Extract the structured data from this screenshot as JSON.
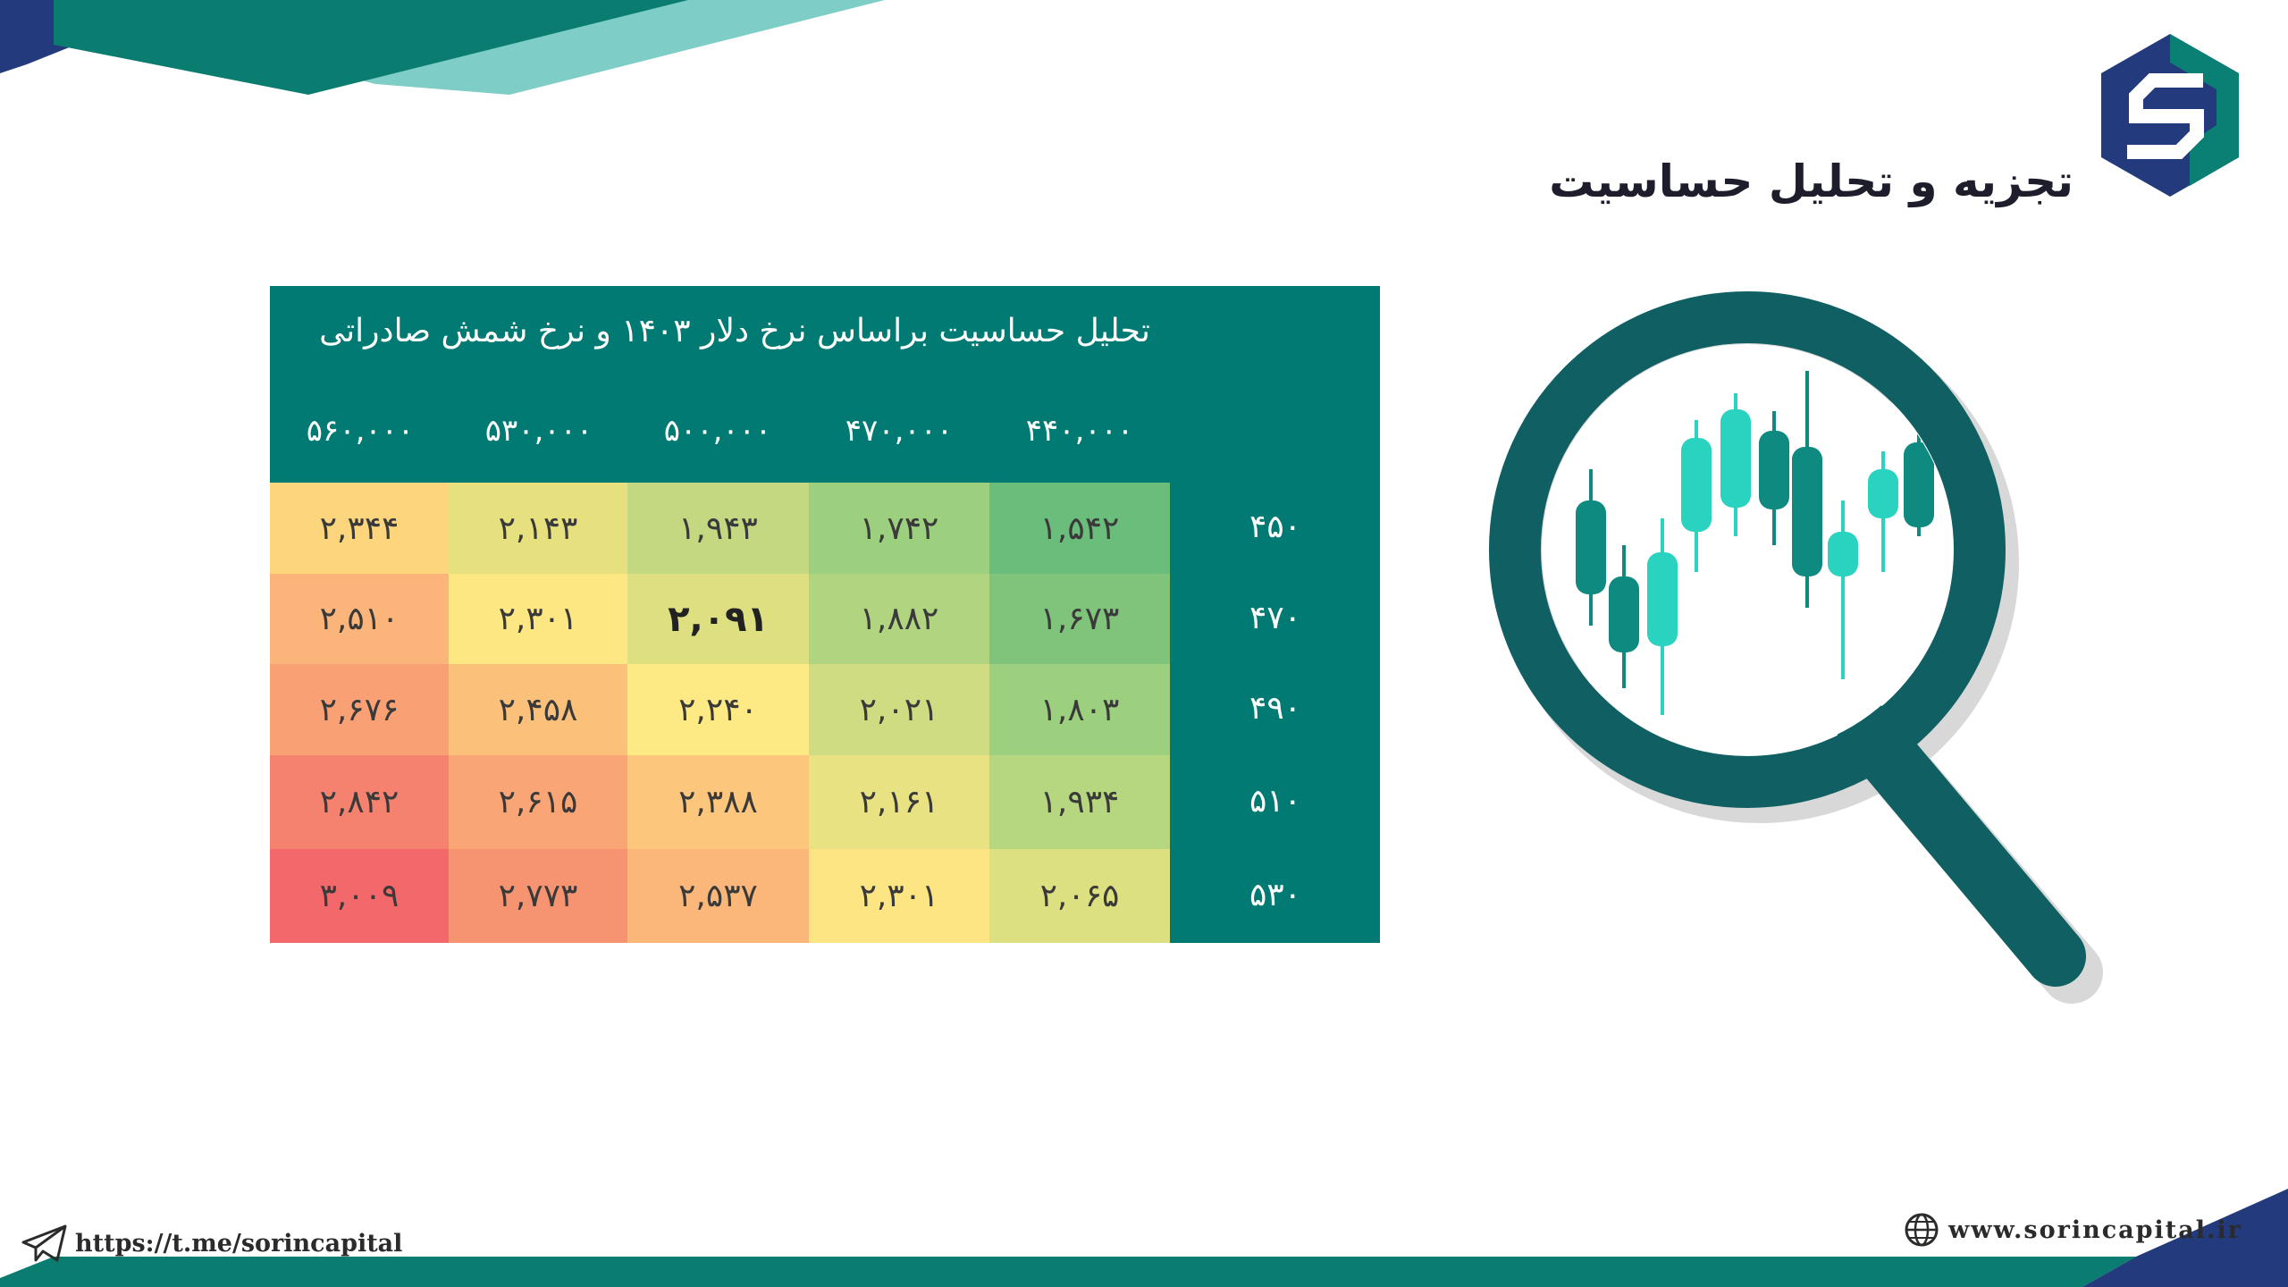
{
  "header": {
    "title": "تجزیه و تحلیل حساسیت",
    "logo": "sorin-logo-icon"
  },
  "table": {
    "title": "تحلیل حساسیت براساس نرخ دلار ۱۴۰۳ و نرخ شمش صادراتی",
    "column_headers": [
      "۵۶۰,۰۰۰",
      "۵۳۰,۰۰۰",
      "۵۰۰,۰۰۰",
      "۴۷۰,۰۰۰",
      "۴۴۰,۰۰۰"
    ],
    "rows": [
      {
        "label": "۴۵۰",
        "cells": [
          "۲,۳۴۴",
          "۲,۱۴۳",
          "۱,۹۴۳",
          "۱,۷۴۲",
          "۱,۵۴۲"
        ]
      },
      {
        "label": "۴۷۰",
        "cells": [
          "۲,۵۱۰",
          "۲,۳۰۱",
          "۲,۰۹۱",
          "۱,۸۸۲",
          "۱,۶۷۳"
        ]
      },
      {
        "label": "۴۹۰",
        "cells": [
          "۲,۶۷۶",
          "۲,۴۵۸",
          "۲,۲۴۰",
          "۲,۰۲۱",
          "۱,۸۰۳"
        ]
      },
      {
        "label": "۵۱۰",
        "cells": [
          "۲,۸۴۲",
          "۲,۶۱۵",
          "۲,۳۸۸",
          "۲,۱۶۱",
          "۱,۹۳۴"
        ]
      },
      {
        "label": "۵۳۰",
        "cells": [
          "۳,۰۰۹",
          "۲,۷۷۳",
          "۲,۵۳۷",
          "۲,۳۰۱",
          "۲,۰۶۵"
        ]
      }
    ],
    "highlight": {
      "row": 1,
      "col": 2
    },
    "cell_colors": [
      [
        "#fdd57d",
        "#e6e07f",
        "#c3d880",
        "#9ccf7e",
        "#6bbd7b"
      ],
      [
        "#fbb47a",
        "#fde783",
        "#dddf81",
        "#b0d480",
        "#80c47c"
      ],
      [
        "#f9a174",
        "#fbc17b",
        "#feea84",
        "#cfdc81",
        "#9ccf7e"
      ],
      [
        "#f4826f",
        "#f9a575",
        "#fcc67c",
        "#e8e282",
        "#b6d680"
      ],
      [
        "#f3686b",
        "#f69371",
        "#fbb77a",
        "#fde583",
        "#dce081"
      ]
    ],
    "panel_color": "#007a72"
  },
  "footer": {
    "telegram_url": "https://t.me/sorincapital",
    "telegram_icon": "telegram-plane-icon",
    "website_url": "www.sorincapital.ir",
    "website_icon": "globe-icon"
  },
  "illustration": {
    "icon": "magnifier-candlestick-icon"
  },
  "colors": {
    "navy": "#233a7c",
    "teal": "#0a8075",
    "light_teal": "#7ecdc7"
  }
}
